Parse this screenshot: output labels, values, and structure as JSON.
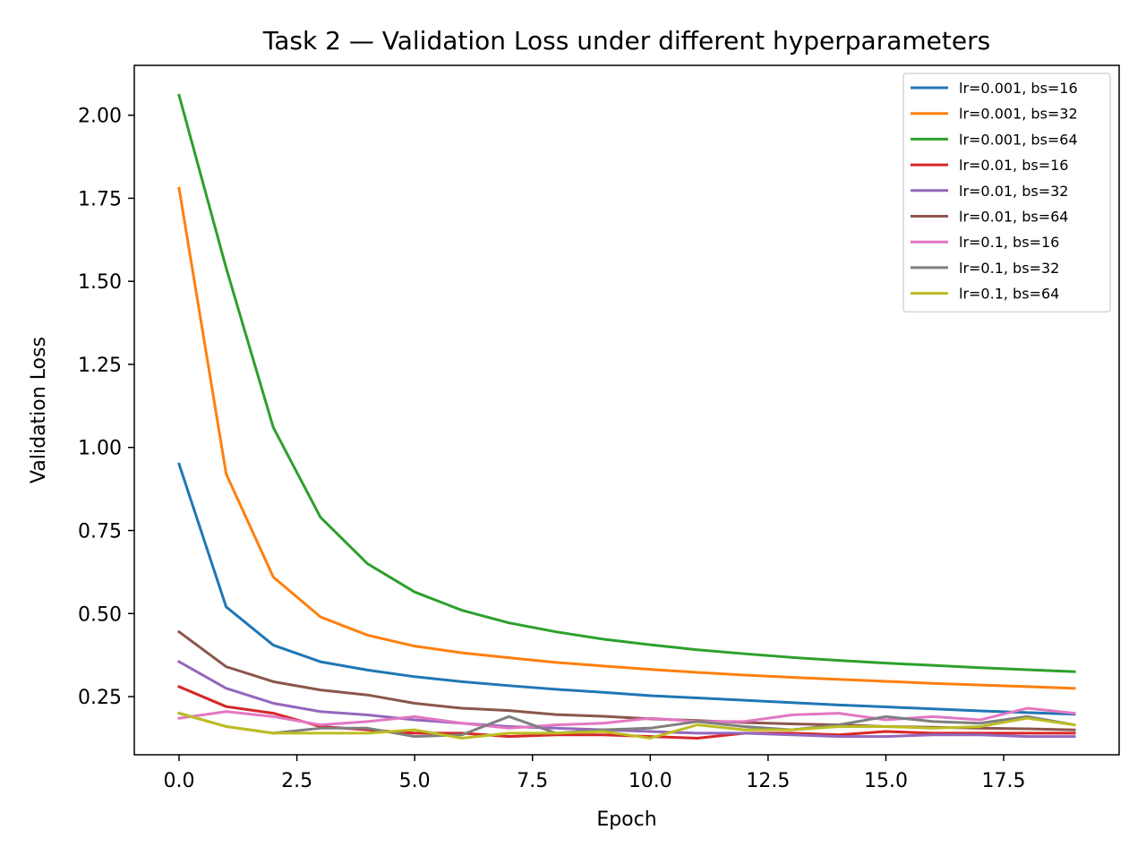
{
  "chart_data": {
    "type": "line",
    "title": "Task 2 — Validation Loss under different hyperparameters",
    "xlabel": "Epoch",
    "ylabel": "Validation Loss",
    "xlim": [
      -0.95,
      19.95
    ],
    "ylim": [
      0.075,
      2.15
    ],
    "x_ticks": [
      0,
      2.5,
      5,
      7.5,
      10,
      12.5,
      15,
      17.5
    ],
    "x_tick_labels": [
      "0.0",
      "2.5",
      "5.0",
      "7.5",
      "10.0",
      "12.5",
      "15.0",
      "17.5"
    ],
    "y_ticks": [
      0.25,
      0.5,
      0.75,
      1.0,
      1.25,
      1.5,
      1.75,
      2.0
    ],
    "y_tick_labels": [
      "0.25",
      "0.50",
      "0.75",
      "1.00",
      "1.25",
      "1.50",
      "1.75",
      "2.00"
    ],
    "grid": false,
    "legend_position": "upper right",
    "x": [
      0,
      1,
      2,
      3,
      4,
      5,
      6,
      7,
      8,
      9,
      10,
      11,
      12,
      13,
      14,
      15,
      16,
      17,
      18,
      19
    ],
    "series": [
      {
        "name": "lr=0.001, bs=16",
        "color": "#1f77b4",
        "values": [
          0.95,
          0.52,
          0.405,
          0.355,
          0.33,
          0.31,
          0.295,
          0.283,
          0.272,
          0.263,
          0.253,
          0.246,
          0.239,
          0.232,
          0.225,
          0.219,
          0.213,
          0.207,
          0.202,
          0.197
        ]
      },
      {
        "name": "lr=0.001, bs=32",
        "color": "#ff7f0e",
        "values": [
          1.78,
          0.92,
          0.61,
          0.49,
          0.435,
          0.402,
          0.382,
          0.367,
          0.353,
          0.342,
          0.332,
          0.323,
          0.315,
          0.308,
          0.302,
          0.296,
          0.29,
          0.285,
          0.28,
          0.275
        ]
      },
      {
        "name": "lr=0.001, bs=64",
        "color": "#2ca02c",
        "values": [
          2.06,
          1.54,
          1.06,
          0.79,
          0.65,
          0.565,
          0.51,
          0.472,
          0.445,
          0.423,
          0.406,
          0.391,
          0.379,
          0.368,
          0.359,
          0.351,
          0.344,
          0.337,
          0.331,
          0.325
        ]
      },
      {
        "name": "lr=0.01, bs=16",
        "color": "#d62728",
        "values": [
          0.28,
          0.22,
          0.2,
          0.16,
          0.15,
          0.14,
          0.14,
          0.13,
          0.135,
          0.135,
          0.13,
          0.125,
          0.14,
          0.14,
          0.135,
          0.145,
          0.14,
          0.14,
          0.14,
          0.14
        ]
      },
      {
        "name": "lr=0.01, bs=32",
        "color": "#9467bd",
        "values": [
          0.355,
          0.275,
          0.23,
          0.205,
          0.195,
          0.18,
          0.17,
          0.16,
          0.155,
          0.15,
          0.145,
          0.14,
          0.14,
          0.135,
          0.13,
          0.13,
          0.135,
          0.135,
          0.13,
          0.13
        ]
      },
      {
        "name": "lr=0.01, bs=64",
        "color": "#8c564b",
        "values": [
          0.445,
          0.34,
          0.295,
          0.27,
          0.255,
          0.23,
          0.215,
          0.208,
          0.196,
          0.191,
          0.183,
          0.178,
          0.172,
          0.168,
          0.165,
          0.16,
          0.158,
          0.155,
          0.153,
          0.15
        ]
      },
      {
        "name": "lr=0.1, bs=16",
        "color": "#e377c2",
        "values": [
          0.185,
          0.205,
          0.19,
          0.165,
          0.175,
          0.19,
          0.17,
          0.155,
          0.165,
          0.17,
          0.185,
          0.175,
          0.175,
          0.195,
          0.2,
          0.18,
          0.19,
          0.18,
          0.215,
          0.2
        ]
      },
      {
        "name": "lr=0.1, bs=32",
        "color": "#7f7f7f",
        "values": [
          0.2,
          0.16,
          0.14,
          0.155,
          0.155,
          0.13,
          0.135,
          0.19,
          0.14,
          0.15,
          0.155,
          0.175,
          0.16,
          0.15,
          0.165,
          0.19,
          0.175,
          0.17,
          0.19,
          0.165
        ]
      },
      {
        "name": "lr=0.1, bs=64",
        "color": "#bcbd22",
        "values": [
          0.2,
          0.16,
          0.14,
          0.14,
          0.14,
          0.15,
          0.125,
          0.14,
          0.14,
          0.145,
          0.125,
          0.165,
          0.15,
          0.15,
          0.16,
          0.16,
          0.155,
          0.16,
          0.185,
          0.165
        ]
      }
    ]
  }
}
